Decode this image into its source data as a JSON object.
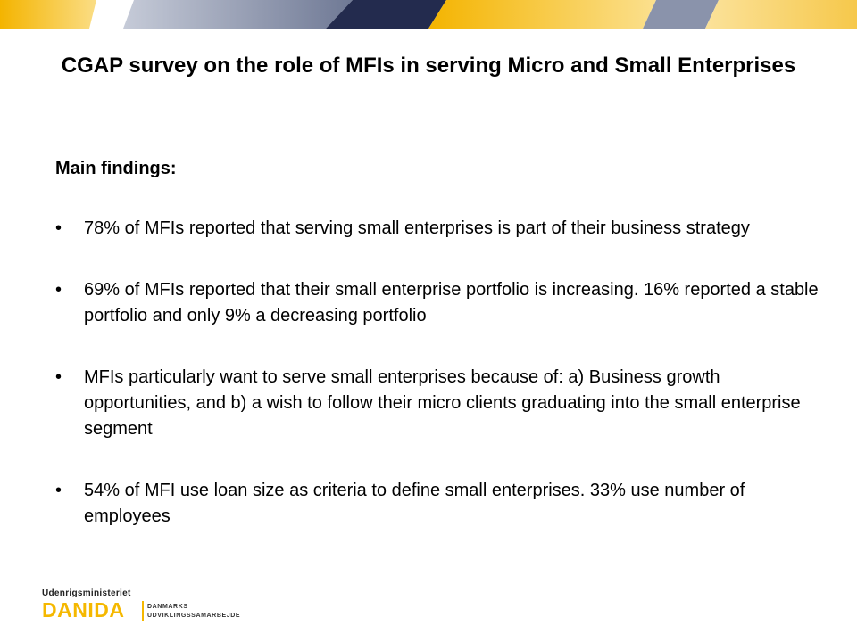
{
  "slide": {
    "title": "CGAP survey on the role of MFIs in serving Micro and Small Enterprises",
    "subheading": "Main findings:",
    "bullet_symbol": "•",
    "bullets": [
      "78% of MFIs reported that serving small enterprises is part of their business strategy",
      "69% of MFIs reported that their small enterprise portfolio is increasing. 16% reported a stable portfolio and only 9% a decreasing portfolio",
      "MFIs particularly want to serve small enterprises because of: a) Business growth opportunities, and b) a wish to follow their micro clients graduating into the small enterprise segment",
      "54% of MFI use loan size as criteria to define small enterprises. 33% use number of employees"
    ]
  },
  "logo": {
    "ministry": "Udenrigsministeriet",
    "brand": "DANIDA",
    "sub_line1": "DANMARKS",
    "sub_line2": "UDVIKLINGSSAMARBEJDE"
  },
  "colors": {
    "banner_navy": "#232b4e",
    "banner_slate": "#8a93ab",
    "banner_yellow": "#f6c84b",
    "brand_yellow": "#f5b800"
  }
}
